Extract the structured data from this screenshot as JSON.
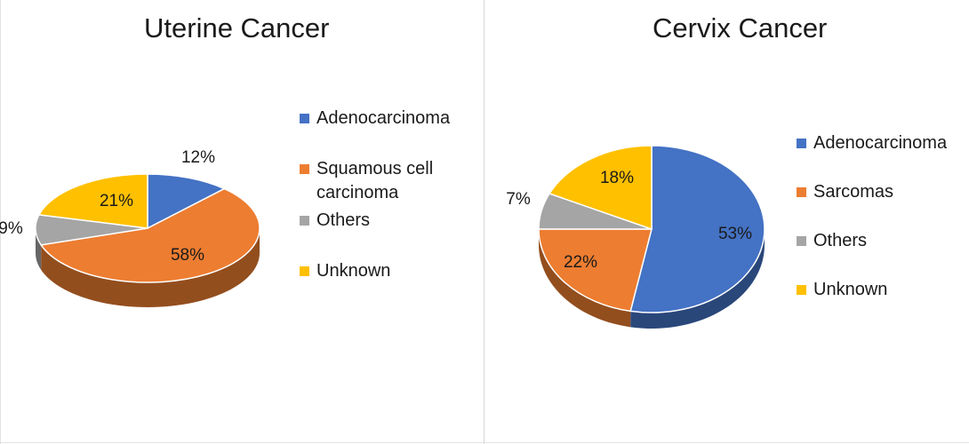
{
  "chart_data": [
    {
      "type": "pie",
      "title": "Uterine Cancer",
      "categories": [
        "Adenocarcinoma",
        "Squamous cell carcinoma",
        "Others",
        "Unknown"
      ],
      "values": [
        12,
        58,
        9,
        21
      ],
      "value_labels": [
        "12%",
        "58%",
        "9%",
        "21%"
      ],
      "colors": [
        "#4472C4",
        "#ED7D31",
        "#A5A5A5",
        "#FFC000"
      ],
      "legend_position": "right",
      "style": "3d"
    },
    {
      "type": "pie",
      "title": "Cervix Cancer",
      "categories": [
        "Adenocarcinoma",
        "Sarcomas",
        "Others",
        "Unknown"
      ],
      "values": [
        53,
        22,
        7,
        18
      ],
      "value_labels": [
        "53%",
        "22%",
        "7%",
        "18%"
      ],
      "colors": [
        "#4472C4",
        "#ED7D31",
        "#A5A5A5",
        "#FFC000"
      ],
      "legend_position": "right",
      "style": "3d"
    }
  ]
}
